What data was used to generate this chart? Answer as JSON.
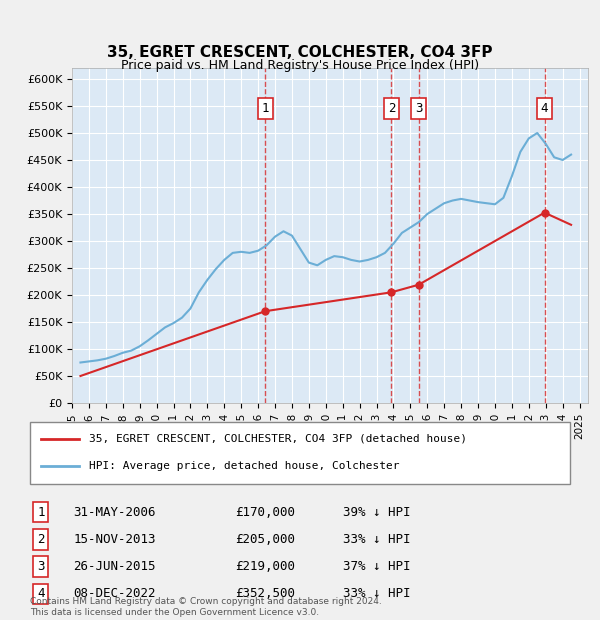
{
  "title1": "35, EGRET CRESCENT, COLCHESTER, CO4 3FP",
  "title2": "Price paid vs. HM Land Registry's House Price Index (HPI)",
  "ylabel_ticks": [
    "£0",
    "£50K",
    "£100K",
    "£150K",
    "£200K",
    "£250K",
    "£300K",
    "£350K",
    "£400K",
    "£450K",
    "£500K",
    "£550K",
    "£600K"
  ],
  "ytick_values": [
    0,
    50000,
    100000,
    150000,
    200000,
    250000,
    300000,
    350000,
    400000,
    450000,
    500000,
    550000,
    600000
  ],
  "xlim_start": 1995.0,
  "xlim_end": 2025.5,
  "ylim_min": 0,
  "ylim_max": 620000,
  "background_color": "#dce9f5",
  "plot_bg_color": "#dce9f5",
  "grid_color": "#ffffff",
  "hpi_line_color": "#6baed6",
  "sale_line_color": "#d62728",
  "sale_marker_color": "#d62728",
  "vline_color": "#d62728",
  "annotations": [
    {
      "num": 1,
      "x_year": 2006.42,
      "y_price": 170000,
      "label": "1"
    },
    {
      "num": 2,
      "x_year": 2013.88,
      "y_price": 205000,
      "label": "2"
    },
    {
      "num": 3,
      "x_year": 2015.49,
      "y_price": 219000,
      "label": "3"
    },
    {
      "num": 4,
      "x_year": 2022.93,
      "y_price": 352500,
      "label": "4"
    }
  ],
  "legend_entries": [
    "35, EGRET CRESCENT, COLCHESTER, CO4 3FP (detached house)",
    "HPI: Average price, detached house, Colchester"
  ],
  "table_rows": [
    {
      "num": "1",
      "date": "31-MAY-2006",
      "price": "£170,000",
      "hpi": "39% ↓ HPI"
    },
    {
      "num": "2",
      "date": "15-NOV-2013",
      "price": "£205,000",
      "hpi": "33% ↓ HPI"
    },
    {
      "num": "3",
      "date": "26-JUN-2015",
      "price": "£219,000",
      "hpi": "37% ↓ HPI"
    },
    {
      "num": "4",
      "date": "08-DEC-2022",
      "price": "£352,500",
      "hpi": "33% ↓ HPI"
    }
  ],
  "footnote": "Contains HM Land Registry data © Crown copyright and database right 2024.\nThis data is licensed under the Open Government Licence v3.0.",
  "hpi_data": {
    "years": [
      1995.5,
      1996.0,
      1996.5,
      1997.0,
      1997.5,
      1998.0,
      1998.5,
      1999.0,
      1999.5,
      2000.0,
      2000.5,
      2001.0,
      2001.5,
      2002.0,
      2002.5,
      2003.0,
      2003.5,
      2004.0,
      2004.5,
      2005.0,
      2005.5,
      2006.0,
      2006.5,
      2007.0,
      2007.5,
      2008.0,
      2008.5,
      2009.0,
      2009.5,
      2010.0,
      2010.5,
      2011.0,
      2011.5,
      2012.0,
      2012.5,
      2013.0,
      2013.5,
      2014.0,
      2014.5,
      2015.0,
      2015.5,
      2016.0,
      2016.5,
      2017.0,
      2017.5,
      2018.0,
      2018.5,
      2019.0,
      2019.5,
      2020.0,
      2020.5,
      2021.0,
      2021.5,
      2022.0,
      2022.5,
      2023.0,
      2023.5,
      2024.0,
      2024.5
    ],
    "values": [
      75000,
      77000,
      79000,
      82000,
      87000,
      93000,
      97000,
      105000,
      116000,
      128000,
      140000,
      148000,
      158000,
      175000,
      205000,
      228000,
      248000,
      265000,
      278000,
      280000,
      278000,
      282000,
      292000,
      308000,
      318000,
      310000,
      285000,
      260000,
      255000,
      265000,
      272000,
      270000,
      265000,
      262000,
      265000,
      270000,
      278000,
      295000,
      315000,
      325000,
      335000,
      350000,
      360000,
      370000,
      375000,
      378000,
      375000,
      372000,
      370000,
      368000,
      380000,
      420000,
      465000,
      490000,
      500000,
      480000,
      455000,
      450000,
      460000
    ]
  },
  "sale_data": {
    "years": [
      1995.5,
      2006.42,
      2013.88,
      2015.49,
      2022.93,
      2024.5
    ],
    "values": [
      50000,
      170000,
      205000,
      219000,
      352500,
      330000
    ]
  }
}
